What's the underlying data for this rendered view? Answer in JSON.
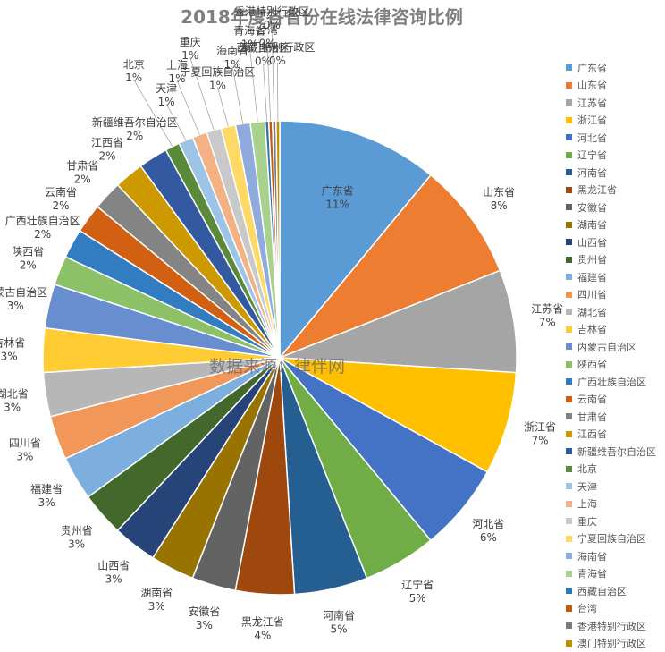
{
  "chart_data": {
    "type": "pie",
    "title": "2018年度各省份在线法律咨询比例",
    "watermark": "数据来源：律伴网",
    "legend_position": "right",
    "categories": [
      "广东省",
      "山东省",
      "江苏省",
      "浙江省",
      "河北省",
      "辽宁省",
      "河南省",
      "黑龙江省",
      "安徽省",
      "湖南省",
      "山西省",
      "贵州省",
      "福建省",
      "四川省",
      "湖北省",
      "吉林省",
      "内蒙古自治区",
      "陕西省",
      "广西壮族自治区",
      "云南省",
      "甘肃省",
      "江西省",
      "新疆维吾尔自治区",
      "北京",
      "天津",
      "上海",
      "重庆",
      "宁夏回族自治区",
      "海南省",
      "青海省",
      "西藏自治区",
      "台湾",
      "香港特别行政区",
      "澳门特别行政区"
    ],
    "values": [
      11,
      8,
      7,
      7,
      6,
      5,
      5,
      4,
      3,
      3,
      3,
      3,
      3,
      3,
      3,
      3,
      3,
      2,
      2,
      2,
      2,
      2,
      2,
      1,
      1,
      1,
      1,
      1,
      1,
      1,
      0,
      0,
      0,
      0
    ],
    "labels": [
      "11%",
      "8%",
      "7%",
      "7%",
      "6%",
      "5%",
      "5%",
      "4%",
      "3%",
      "3%",
      "3%",
      "3%",
      "3%",
      "3%",
      "3%",
      "3%",
      "3%",
      "2%",
      "2%",
      "2%",
      "2%",
      "2%",
      "2%",
      "1%",
      "1%",
      "1%",
      "1%",
      "1%",
      "1%",
      "1%",
      "0%",
      "0%",
      "0%",
      "0%"
    ],
    "colors": [
      "#5B9BD5",
      "#ED7D31",
      "#A5A5A5",
      "#FFC000",
      "#4472C4",
      "#70AD47",
      "#255E91",
      "#9E480E",
      "#636363",
      "#997300",
      "#264478",
      "#43682B",
      "#7CAFDD",
      "#F1975A",
      "#B7B7B7",
      "#FFCD33",
      "#698ED0",
      "#8CC168",
      "#327DC2",
      "#D26012",
      "#848484",
      "#CC9A00",
      "#335AA1",
      "#5A8A39",
      "#9DC3E6",
      "#F4B183",
      "#C9C9C9",
      "#FFD966",
      "#8FAADC",
      "#A9D18E",
      "#2E75B6",
      "#C55A11",
      "#7B7B7B",
      "#BF9000"
    ]
  }
}
